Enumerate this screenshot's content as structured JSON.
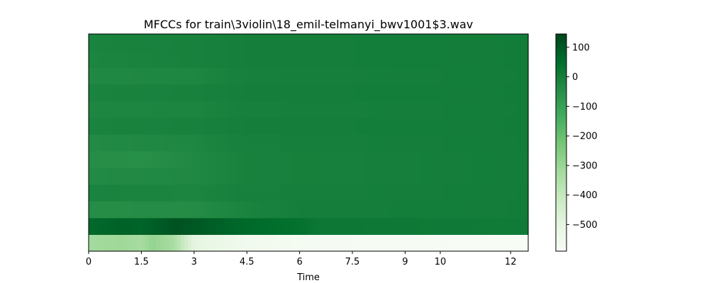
{
  "chart_data": {
    "type": "heatmap",
    "title": "MFCCs for train\\3violin\\18_emil-telmanyi_bwv1001$3.wav",
    "xlabel": "Time",
    "ylabel": "",
    "x_range": [
      0,
      12.5
    ],
    "x_ticks": [
      0,
      1.5,
      3,
      4.5,
      6,
      7.5,
      9,
      10,
      12
    ],
    "x_tick_labels": [
      "0",
      "1.5",
      "3",
      "4.5",
      "6",
      "7.5",
      "9",
      "10",
      "12"
    ],
    "y_axis_visible": false,
    "n_coefficients": 13,
    "colormap": "Greens",
    "color_range": [
      -590,
      145
    ],
    "colorbar_ticks": [
      100,
      0,
      -100,
      -200,
      -300,
      -400,
      -500
    ],
    "colorbar_tick_labels": [
      "100",
      "0",
      "−100",
      "−200",
      "−300",
      "−400",
      "−500"
    ],
    "legend": "colorbar-right",
    "grid": false,
    "coefficient_profiles": [
      {
        "coefficient": 1,
        "description": "lowest row",
        "points": [
          [
            0,
            -320
          ],
          [
            1.0,
            -310
          ],
          [
            1.5,
            -330
          ],
          [
            1.8,
            -290
          ],
          [
            2.4,
            -330
          ],
          [
            3.0,
            -500
          ],
          [
            4.5,
            -560
          ],
          [
            6.0,
            -575
          ],
          [
            8.0,
            -585
          ],
          [
            12.5,
            -590
          ]
        ]
      },
      {
        "coefficient": 2,
        "points": [
          [
            0,
            60
          ],
          [
            1.0,
            80
          ],
          [
            1.5,
            70
          ],
          [
            2.5,
            115
          ],
          [
            3.0,
            100
          ],
          [
            4.5,
            60
          ],
          [
            6.0,
            40
          ],
          [
            6.6,
            20
          ],
          [
            12.5,
            10
          ]
        ]
      },
      {
        "coefficient": 3,
        "points": [
          [
            0,
            -45
          ],
          [
            3.0,
            -40
          ],
          [
            4.5,
            -15
          ],
          [
            6.0,
            0
          ],
          [
            12.5,
            5
          ]
        ]
      },
      {
        "coefficient": 4,
        "points": [
          [
            0,
            -15
          ],
          [
            3.0,
            -20
          ],
          [
            4.5,
            -5
          ],
          [
            12.5,
            5
          ]
        ]
      },
      {
        "coefficient": 5,
        "points": [
          [
            0,
            -35
          ],
          [
            3.0,
            -30
          ],
          [
            4.5,
            -10
          ],
          [
            12.5,
            5
          ]
        ]
      },
      {
        "coefficient": 6,
        "points": [
          [
            0,
            -45
          ],
          [
            1.5,
            -50
          ],
          [
            3.0,
            -30
          ],
          [
            4.5,
            -10
          ],
          [
            12.5,
            5
          ]
        ]
      },
      {
        "coefficient": 7,
        "points": [
          [
            0,
            -35
          ],
          [
            3.0,
            -25
          ],
          [
            4.5,
            -5
          ],
          [
            12.5,
            5
          ]
        ]
      },
      {
        "coefficient": 8,
        "points": [
          [
            0,
            -15
          ],
          [
            3.0,
            -10
          ],
          [
            4.5,
            0
          ],
          [
            12.5,
            5
          ]
        ]
      },
      {
        "coefficient": 9,
        "points": [
          [
            0,
            -25
          ],
          [
            3.0,
            -20
          ],
          [
            4.5,
            -5
          ],
          [
            12.5,
            5
          ]
        ]
      },
      {
        "coefficient": 10,
        "points": [
          [
            0,
            -15
          ],
          [
            3.0,
            -10
          ],
          [
            4.5,
            0
          ],
          [
            12.5,
            5
          ]
        ]
      },
      {
        "coefficient": 11,
        "points": [
          [
            0,
            -30
          ],
          [
            3.0,
            -25
          ],
          [
            4.5,
            -5
          ],
          [
            12.5,
            5
          ]
        ]
      },
      {
        "coefficient": 12,
        "points": [
          [
            0,
            -20
          ],
          [
            3.0,
            -10
          ],
          [
            4.5,
            0
          ],
          [
            12.5,
            5
          ]
        ]
      },
      {
        "coefficient": 13,
        "description": "top row",
        "points": [
          [
            0,
            -15
          ],
          [
            3.0,
            -10
          ],
          [
            4.5,
            0
          ],
          [
            12.5,
            5
          ]
        ]
      }
    ]
  }
}
